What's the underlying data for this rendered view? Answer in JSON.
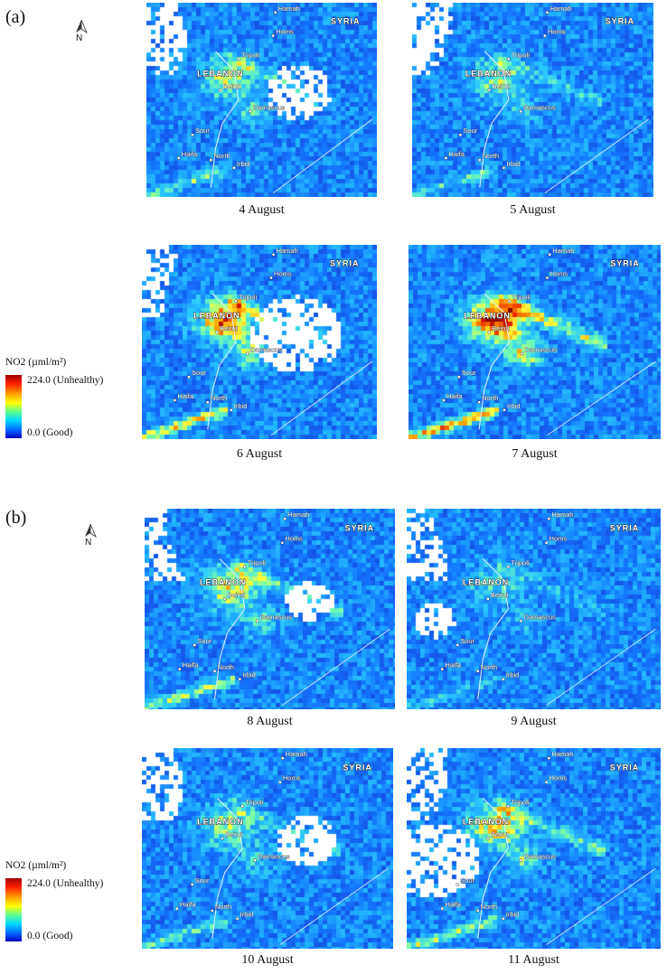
{
  "figure": {
    "panel_a_label": "(a)",
    "panel_b_label": "(b)",
    "north_label": "N"
  },
  "legend": {
    "title": "NO2 (µml/m²)",
    "max_label": "224.0 (Unhealthy)",
    "min_label": "0.0 (Good)",
    "color_high": "#a00000",
    "color_low": "#0000c0"
  },
  "map_labels": {
    "country": "SYRIA",
    "lebanon": "LEBANON",
    "cities": [
      "Hamah",
      "Homs",
      "Tripoli",
      "Beirut",
      "Damascus",
      "Sour",
      "Haifa",
      "North",
      "Irbid"
    ]
  },
  "maps": [
    {
      "caption": "4 August",
      "level": 0.55
    },
    {
      "caption": "5 August",
      "level": 0.45
    },
    {
      "caption": "6 August",
      "level": 0.85
    },
    {
      "caption": "7 August",
      "level": 1.0
    },
    {
      "caption": "8 August",
      "level": 0.6
    },
    {
      "caption": "9 August",
      "level": 0.3
    },
    {
      "caption": "10 August",
      "level": 0.45
    },
    {
      "caption": "11 August",
      "level": 0.65
    }
  ]
}
